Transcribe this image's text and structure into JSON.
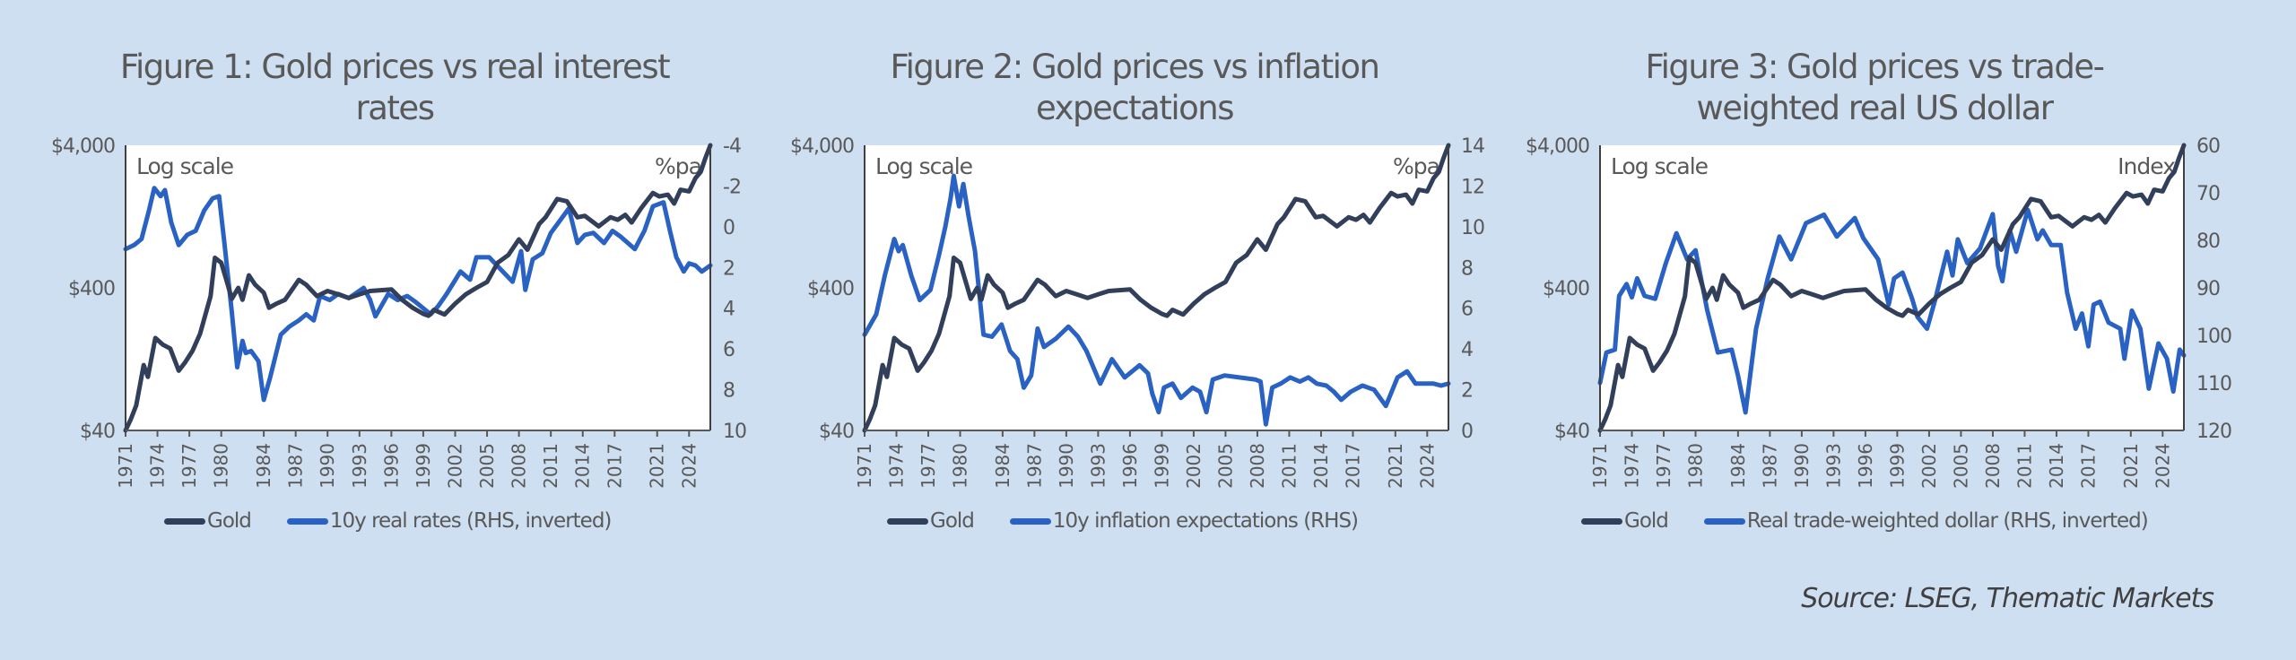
{
  "colors": {
    "gold": "#323f5a",
    "rhs": "#2a62c4",
    "background": "#cfdff2",
    "text": "#595959"
  },
  "source": "Source: LSEG, Thematic Markets",
  "chart_data": [
    {
      "type": "line",
      "title": "Figure 1: Gold prices vs real interest rates",
      "title_lines": [
        "Figure 1: Gold prices vs real interest",
        "rates"
      ],
      "left_axis": {
        "scale": "log",
        "range": [
          40,
          4000
        ],
        "ticks": [
          4000,
          400,
          40
        ],
        "tick_labels": [
          "$4,000",
          "$400",
          "$40"
        ]
      },
      "right_axis": {
        "inverted": true,
        "range": [
          -4,
          10
        ],
        "ticks": [
          -4,
          -2,
          0,
          2,
          4,
          6,
          8,
          10
        ],
        "tick_labels": [
          "-4",
          "-2",
          "0",
          "2",
          "4",
          "6",
          "8",
          "10"
        ],
        "unit_label": "%pa"
      },
      "x_range": [
        1971,
        2026
      ],
      "x_tick_labels": [
        "1971",
        "1974",
        "1977",
        "1980",
        "1984",
        "1987",
        "1990",
        "1993",
        "1996",
        "1999",
        "2002",
        "2005",
        "2008",
        "2011",
        "2014",
        "2017",
        "2021",
        "2024"
      ],
      "annotation": "Log scale",
      "legend": [
        "Gold",
        "10y real rates (RHS, inverted)"
      ],
      "legend_placement": "bottom",
      "series": [
        {
          "name": "Gold",
          "axis": "left",
          "ref": "gold"
        },
        {
          "name": "10y real rates (RHS, inverted)",
          "axis": "right",
          "x": [
            1971,
            1971.8,
            1972.5,
            1973.2,
            1973.7,
            1974.3,
            1974.7,
            1975.3,
            1976,
            1976.8,
            1977.6,
            1978.4,
            1979.2,
            1979.8,
            1980.3,
            1981,
            1981.5,
            1982,
            1982.3,
            1982.8,
            1983.5,
            1984,
            1984.6,
            1985.6,
            1986.4,
            1987.3,
            1988,
            1988.7,
            1989.3,
            1990.2,
            1991,
            1992,
            1993.4,
            1994,
            1994.5,
            1995.7,
            1996.6,
            1997.5,
            1998.3,
            1999.7,
            2000.4,
            2001.2,
            2002.5,
            2003.4,
            2004,
            2005.2,
            2006.3,
            2007.4,
            2008.2,
            2008.6,
            2009.3,
            2010.2,
            2011,
            2012,
            2012.7,
            2013.5,
            2014.2,
            2015,
            2016,
            2016.8,
            2017.6,
            2018.9,
            2019.8,
            2020.6,
            2021.6,
            2022.2,
            2022.8,
            2023.5,
            2024,
            2024.6,
            2025.2,
            2026
          ],
          "values": [
            1.1,
            0.9,
            0.6,
            -0.8,
            -1.9,
            -1.5,
            -1.8,
            -0.2,
            0.9,
            0.4,
            0.2,
            -0.8,
            -1.4,
            -1.5,
            0.8,
            4.2,
            6.9,
            5.6,
            6.2,
            6.1,
            6.6,
            8.5,
            7.4,
            5.3,
            4.9,
            4.6,
            4.3,
            4.6,
            3.4,
            3.6,
            3.3,
            3.5,
            3.0,
            3.6,
            4.4,
            3.3,
            3.6,
            3.4,
            3.7,
            4.3,
            3.9,
            3.3,
            2.2,
            2.6,
            1.5,
            1.5,
            2.1,
            2.7,
            1.2,
            3.1,
            1.6,
            1.3,
            0.3,
            -0.4,
            -0.9,
            0.8,
            0.4,
            0.3,
            0.8,
            0.2,
            0.5,
            1.1,
            0.2,
            -1.0,
            -1.2,
            0.2,
            1.5,
            2.2,
            1.8,
            1.9,
            2.2,
            1.9
          ]
        }
      ]
    },
    {
      "type": "line",
      "title": "Figure 2: Gold prices vs inflation expectations",
      "title_lines": [
        "Figure 2: Gold prices vs inflation",
        "expectations"
      ],
      "left_axis": {
        "scale": "log",
        "range": [
          40,
          4000
        ],
        "ticks": [
          4000,
          400,
          40
        ],
        "tick_labels": [
          "$4,000",
          "$400",
          "$40"
        ]
      },
      "right_axis": {
        "inverted": false,
        "range": [
          0,
          14
        ],
        "ticks": [
          0,
          2,
          4,
          6,
          8,
          10,
          12,
          14
        ],
        "tick_labels": [
          "0",
          "2",
          "4",
          "6",
          "8",
          "10",
          "12",
          "14"
        ],
        "unit_label": "%pa"
      },
      "x_range": [
        1971,
        2026
      ],
      "x_tick_labels": [
        "1971",
        "1974",
        "1977",
        "1980",
        "1984",
        "1987",
        "1990",
        "1993",
        "1996",
        "1999",
        "2002",
        "2005",
        "2008",
        "2011",
        "2014",
        "2017",
        "2021",
        "2024"
      ],
      "annotation": "Log scale",
      "legend": [
        "Gold",
        "10y inflation expectations (RHS)"
      ],
      "legend_placement": "bottom",
      "series": [
        {
          "name": "Gold",
          "axis": "left",
          "ref": "gold"
        },
        {
          "name": "10y inflation expectations (RHS)",
          "axis": "right",
          "x": [
            1971,
            1972.1,
            1972.9,
            1973.8,
            1974.2,
            1974.6,
            1975.4,
            1976.2,
            1977.2,
            1978,
            1978.6,
            1979.1,
            1979.4,
            1979.9,
            1980.3,
            1980.8,
            1981.4,
            1982.2,
            1983,
            1983.9,
            1984.7,
            1985.4,
            1986,
            1986.7,
            1987.3,
            1987.9,
            1989,
            1990.2,
            1991.1,
            1991.9,
            1993.2,
            1994.3,
            1995.5,
            1996.9,
            1997.7,
            1998.1,
            1998.7,
            1999.2,
            2000,
            2000.8,
            2001.9,
            2002.6,
            2003.2,
            2003.8,
            2004.9,
            2006.3,
            2007.8,
            2008.3,
            2008.8,
            2009.4,
            2010.2,
            2011.1,
            2012,
            2012.8,
            2013.6,
            2014.5,
            2015.2,
            2015.9,
            2016.8,
            2017.9,
            2019,
            2020.1,
            2021.2,
            2022.1,
            2022.9,
            2023.6,
            2024.6,
            2025.3,
            2026
          ],
          "values": [
            4.7,
            5.7,
            7.6,
            9.4,
            8.8,
            9.1,
            7.6,
            6.4,
            6.9,
            8.6,
            10.0,
            11.4,
            12.5,
            11.0,
            12.1,
            10.5,
            8.8,
            4.7,
            4.6,
            5.2,
            3.9,
            3.5,
            2.1,
            2.7,
            5.0,
            4.1,
            4.5,
            5.1,
            4.6,
            3.9,
            2.3,
            3.5,
            2.6,
            3.2,
            2.8,
            1.8,
            0.9,
            2.1,
            2.3,
            1.6,
            2.1,
            1.9,
            0.9,
            2.5,
            2.7,
            2.6,
            2.5,
            2.4,
            0.3,
            2.1,
            2.3,
            2.6,
            2.4,
            2.6,
            2.3,
            2.2,
            1.9,
            1.5,
            1.9,
            2.2,
            2.0,
            1.2,
            2.6,
            2.9,
            2.3,
            2.3,
            2.3,
            2.2,
            2.3
          ]
        }
      ]
    },
    {
      "type": "line",
      "title": "Figure 3: Gold prices vs trade-weighted real US dollar",
      "title_lines": [
        "Figure 3: Gold prices vs trade-",
        "weighted real US dollar"
      ],
      "left_axis": {
        "scale": "log",
        "range": [
          40,
          4000
        ],
        "ticks": [
          4000,
          400,
          40
        ],
        "tick_labels": [
          "$4,000",
          "$400",
          "$40"
        ]
      },
      "right_axis": {
        "inverted": true,
        "range": [
          60,
          120
        ],
        "ticks": [
          60,
          70,
          80,
          90,
          100,
          110,
          120
        ],
        "tick_labels": [
          "60",
          "70",
          "80",
          "90",
          "100",
          "110",
          "120"
        ],
        "unit_label": "Index"
      },
      "x_range": [
        1971,
        2026
      ],
      "x_tick_labels": [
        "1971",
        "1974",
        "1977",
        "1980",
        "1984",
        "1987",
        "1990",
        "1993",
        "1996",
        "1999",
        "2002",
        "2005",
        "2008",
        "2011",
        "2014",
        "2017",
        "2021",
        "2024"
      ],
      "annotation": "Log scale",
      "legend": [
        "Gold",
        "Real trade-weighted dollar (RHS, inverted)"
      ],
      "legend_placement": "bottom",
      "series": [
        {
          "name": "Gold",
          "axis": "left",
          "ref": "gold"
        },
        {
          "name": "Real trade-weighted dollar (RHS, inverted)",
          "axis": "right",
          "x": [
            1971,
            1971.6,
            1972.4,
            1972.8,
            1973.5,
            1974,
            1974.5,
            1975.2,
            1976.2,
            1977.2,
            1978.2,
            1979.2,
            1980,
            1981.1,
            1982.1,
            1983.4,
            1984,
            1984.7,
            1985.7,
            1986.8,
            1987.9,
            1989,
            1990.4,
            1992.1,
            1993.3,
            1995,
            1995.8,
            1997.2,
            1998.2,
            1998.7,
            1999.5,
            2000.4,
            2000.9,
            2001.8,
            2002.6,
            2003.2,
            2003.7,
            2004.2,
            2004.7,
            2005.6,
            2006.8,
            2008,
            2008.5,
            2008.9,
            2009.6,
            2010.2,
            2011.3,
            2012.2,
            2012.7,
            2013.5,
            2014.4,
            2015,
            2015.8,
            2016.4,
            2017,
            2017.5,
            2018.1,
            2018.9,
            2020,
            2020.4,
            2021.1,
            2021.9,
            2022.7,
            2023.6,
            2024.4,
            2025,
            2025.6,
            2026
          ],
          "values": [
            110,
            103.6,
            103,
            91.7,
            89.2,
            92,
            88,
            91.7,
            92.3,
            84.8,
            78.5,
            84,
            82.1,
            94.7,
            103.6,
            103,
            108.5,
            116.2,
            98.6,
            88,
            79.2,
            84,
            76.4,
            74.6,
            79.2,
            75.3,
            79.5,
            84,
            93.5,
            88,
            86.8,
            92.3,
            96.1,
            98.6,
            92.3,
            86.8,
            82.4,
            87.4,
            79.8,
            84.8,
            81.7,
            74.5,
            85.4,
            88.6,
            77.9,
            82.4,
            73.6,
            79.8,
            77.9,
            81,
            81,
            91,
            98.6,
            95.4,
            102.3,
            93.5,
            92.9,
            97.3,
            98.6,
            104.9,
            94.8,
            98.6,
            111.2,
            101.7,
            104.9,
            111.8,
            103,
            104.2
          ]
        }
      ]
    }
  ],
  "gold": {
    "x": [
      1971,
      1971.5,
      1972,
      1972.7,
      1973.1,
      1973.8,
      1974.5,
      1975.2,
      1976,
      1976.6,
      1977.3,
      1978,
      1978.6,
      1979,
      1979.4,
      1980,
      1980.5,
      1981,
      1981.6,
      1982,
      1982.6,
      1983.2,
      1984,
      1984.5,
      1985.2,
      1986,
      1987.3,
      1988,
      1989,
      1990,
      1991,
      1992,
      1993,
      1994,
      1995,
      1996,
      1997,
      1998,
      1999,
      1999.5,
      2000,
      2001,
      2002,
      2003,
      2004,
      2005,
      2006,
      2007,
      2008,
      2008.8,
      2009.9,
      2010.5,
      2011.6,
      2012.5,
      2013.5,
      2014.2,
      2015.5,
      2016.6,
      2017.3,
      2018,
      2018.6,
      2019.5,
      2020.6,
      2021.2,
      2022,
      2022.6,
      2023.2,
      2024,
      2024.6,
      2025.1,
      2025.5,
      2026
    ],
    "values": [
      40,
      48,
      60,
      115,
      95,
      178,
      160,
      150,
      105,
      120,
      145,
      190,
      274,
      350,
      650,
      600,
      450,
      335,
      400,
      330,
      490,
      420,
      370,
      290,
      310,
      330,
      455,
      420,
      350,
      380,
      360,
      340,
      360,
      380,
      385,
      390,
      330,
      290,
      263,
      255,
      280,
      260,
      310,
      360,
      400,
      440,
      600,
      680,
      875,
      740,
      1120,
      1250,
      1680,
      1620,
      1250,
      1280,
      1080,
      1250,
      1200,
      1300,
      1150,
      1450,
      1850,
      1750,
      1800,
      1560,
      1950,
      1900,
      2350,
      2600,
      3200,
      4000
    ]
  }
}
